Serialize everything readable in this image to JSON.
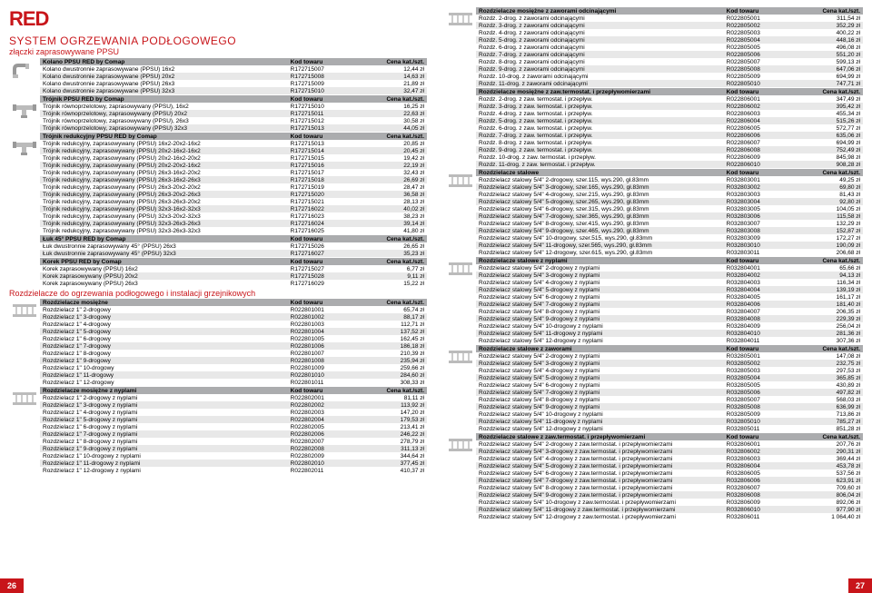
{
  "logo": "RED",
  "mainTitle": "SYSTEM OGRZEWANIA PODŁOGOWEGO",
  "subTitle": "złączki zaprasowywane PPSU",
  "colHeaders": {
    "code": "Kod towaru",
    "price": "Cena kat./szt."
  },
  "secTitle2": "Rozdzielacze do ogrzewania podłogowego i instalacji grzejnikowych",
  "pageLeft": "26",
  "pageRight": "27",
  "leftSections": [
    {
      "header": "Kolano PPSU RED by Comap",
      "thumb": "elbow",
      "rows": [
        [
          "Kolano dwustronnie zaprasowywane (PPSU) 16x2",
          "R172715007",
          "12,44 zł"
        ],
        [
          "Kolano dwustronnie zaprasowywane (PPSU) 20x2",
          "R172715008",
          "14,63 zł"
        ],
        [
          "Kolano dwustronnie zaprasowywane (PPSU) 26x3",
          "R172715009",
          "21,89 zł"
        ],
        [
          "Kolano dwustronnie zaprasowywane (PPSU) 32x3",
          "R172715010",
          "32,47 zł"
        ]
      ]
    },
    {
      "header": "Trójnik PPSU RED by Comap",
      "thumb": "tee",
      "rows": [
        [
          "Trójnik równoprzelotowy, zaprasowywany (PPSU), 16x2",
          "R172715010",
          "16,25 zł"
        ],
        [
          "Trójnik równoprzelotowy, zaprasowywany (PPSU) 20x2",
          "R172715011",
          "22,63 zł"
        ],
        [
          "Trójnik równoprzelotowy, zaprasowywany (PPSU), 26x3",
          "R172715012",
          "30,58 zł"
        ],
        [
          "Trójnik równoprzelotowy, zaprasowywany (PPSU) 32x3",
          "R172715013",
          "44,05 zł"
        ]
      ]
    },
    {
      "header": "Trójnik redukcyjny PPSU RED by Comap",
      "thumb": "tee",
      "rows": [
        [
          "Trójnik redukcyjny, zaprasowywany (PPSU) 16x2-20x2-16x2",
          "R172715013",
          "20,85 zł"
        ],
        [
          "Trójnik redukcyjny, zaprasowywany (PPSU) 20x2-16x2-16x2",
          "R172715014",
          "20,45 zł"
        ],
        [
          "Trójnik redukcyjny, zaprasowywany (PPSU) 20x2-16x2-20x2",
          "R172715015",
          "19,42 zł"
        ],
        [
          "Trójnik redukcyjny, zaprasowywany (PPSU) 20x2-20x2-16x2",
          "R172715016",
          "22,19 zł"
        ],
        [
          "Trójnik redukcyjny, zaprasowywany (PPSU) 26x3-16x2-20x2",
          "R172715017",
          "32,43 zł"
        ],
        [
          "Trójnik redukcyjny, zaprasowywany (PPSU) 26x3-16x2-26x3",
          "R172715018",
          "26,69 zł"
        ],
        [
          "Trójnik redukcyjny, zaprasowywany (PPSU) 26x3-20x2-20x2",
          "R172715019",
          "28,47 zł"
        ],
        [
          "Trójnik redukcyjny, zaprasowywany (PPSU) 26x3-20x2-26x3",
          "R172715020",
          "36,58 zł"
        ],
        [
          "Trójnik redukcyjny, zaprasowywany (PPSU) 26x3-26x3-20x2",
          "R172715021",
          "28,13 zł"
        ],
        [
          "Trójnik redukcyjny, zaprasowywany (PPSU) 32x3-16x2-32x3",
          "R172716022",
          "40,02 zł"
        ],
        [
          "Trójnik redukcyjny, zaprasowywany (PPSU) 32x3-20x2-32x3",
          "R172716023",
          "38,23 zł"
        ],
        [
          "Trójnik redukcyjny, zaprasowywany (PPSU) 32x3-26x3-26x3",
          "R172716024",
          "39,14 zł"
        ],
        [
          "Trójnik redukcyjny, zaprasowywany (PPSU) 32x3-26x3-32x3",
          "R172716025",
          "41,80 zł"
        ]
      ]
    },
    {
      "header": "Łuk 45° PPSU RED by Comap",
      "thumb": "",
      "rows": [
        [
          "Łuk dwustronnie zaprasowywany 45° (PPSU) 26x3",
          "R172715026",
          "26,65 zł"
        ],
        [
          "Łuk dwustronnie zaprasowywany 45° (PPSU) 32x3",
          "R172716027",
          "35,23 zł"
        ]
      ]
    },
    {
      "header": "Korek PPSU RED by Comap",
      "thumb": "",
      "rows": [
        [
          "Korek zaprasowywany (PPSU) 16x2",
          "R172715027",
          "6,77 zł"
        ],
        [
          "Korek zaprasowywany (PPSU) 20x2",
          "R172715028",
          "9,11 zł"
        ],
        [
          "Korek zaprasowywany (PPSU) 26x3",
          "R172716029",
          "15,22 zł"
        ]
      ]
    },
    {
      "header": "Rozdzielacze mosiężne",
      "thumb": "manifold",
      "break": true,
      "rows": [
        [
          "Rozdzielacz 1\" 2-drogowy",
          "R022801001",
          "65,74 zł"
        ],
        [
          "Rozdzielacz 1\" 3-drogowy",
          "R022801002",
          "88,17 zł"
        ],
        [
          "Rozdzielacz 1\" 4-drogowy",
          "R022801003",
          "112,71 zł"
        ],
        [
          "Rozdzielacz 1\" 5-drogowy",
          "R022801004",
          "137,52 zł"
        ],
        [
          "Rozdzielacz 1\" 6-drogowy",
          "R022801005",
          "162,45 zł"
        ],
        [
          "Rozdzielacz 1\" 7-drogowy",
          "R022801006",
          "186,18 zł"
        ],
        [
          "Rozdzielacz 1\" 8-drogowy",
          "R022801007",
          "210,39 zł"
        ],
        [
          "Rozdzielacz 1\" 9-drogowy",
          "R022801008",
          "235,94 zł"
        ],
        [
          "Rozdzielacz 1\" 10-drogowy",
          "R022801009",
          "259,66 zł"
        ],
        [
          "Rozdzielacz 1\" 11-drogowy",
          "R022801010",
          "284,60 zł"
        ],
        [
          "Rozdzielacz 1\" 12-drogowy",
          "R022801011",
          "308,33 zł"
        ]
      ]
    },
    {
      "header": "Rozdzielacze mosiężne z nyplami",
      "thumb": "manifold",
      "rows": [
        [
          "Rozdzielacz 1\" 2-drogowy z nyplami",
          "R022802001",
          "81,11 zł"
        ],
        [
          "Rozdzielacz 1\" 3-drogowy z nyplami",
          "R022802002",
          "113,92 zł"
        ],
        [
          "Rozdzielacz 1\" 4-drogowy z nyplami",
          "R022802003",
          "147,20 zł"
        ],
        [
          "Rozdzielacz 1\" 5-drogowy z nyplami",
          "R022802004",
          "179,53 zł"
        ],
        [
          "Rozdzielacz 1\" 6-drogowy z nyplami",
          "R022802005",
          "213,41 zł"
        ],
        [
          "Rozdzielacz 1\" 7-drogowy z nyplami",
          "R022802006",
          "246,22 zł"
        ],
        [
          "Rozdzielacz 1\" 8-drogowy z nyplami",
          "R022802007",
          "278,79 zł"
        ],
        [
          "Rozdzielacz 1\" 9-drogowy z nyplami",
          "R022802008",
          "311,13 zł"
        ],
        [
          "Rozdzielacz 1\" 10-drogowy z nyplami",
          "R022802009",
          "344,64 zł"
        ],
        [
          "Rozdzielacz 1\" 11-drogowy z nyplami",
          "R022802010",
          "377,45 zł"
        ],
        [
          "Rozdzielacz 1\" 12-drogowy z nyplami",
          "R022802011",
          "410,37 zł"
        ]
      ]
    }
  ],
  "rightSections": [
    {
      "header": "Rozdzielacze mosiężne z zaworami odcinającymi",
      "thumb": "manifold",
      "rows": [
        [
          "Rozdz. 2-drog. z zaworami odcinającymi",
          "R022805001",
          "311,54 zł"
        ],
        [
          "Rozdz. 3-drog. z zaworami odcinającymi",
          "R022805002",
          "352,29 zł"
        ],
        [
          "Rozdz. 4-drog. z zaworami odcinającymi",
          "R022805003",
          "400,22 zł"
        ],
        [
          "Rozdz. 5-drog. z zaworami odcinającymi",
          "R022805004",
          "448,16 zł"
        ],
        [
          "Rozdz. 6-drog. z zaworami odcinającymi",
          "R022805005",
          "496,08 zł"
        ],
        [
          "Rozdz. 7-drog. z zaworami odcinającymi",
          "R022805006",
          "551,20 zł"
        ],
        [
          "Rozdz. 8-drog. z zaworami odcinającymi",
          "R022805007",
          "599,13 zł"
        ],
        [
          "Rozdz. 9-drog. z zaworami odcinającymi",
          "R022805008",
          "647,06 zł"
        ],
        [
          "Rozdz. 10-drog. z zaworami odcinającymi",
          "R022805009",
          "694,99 zł"
        ],
        [
          "Rozdz. 11-drog. z zaworami odcinającymi",
          "R022805010",
          "747,71 zł"
        ]
      ]
    },
    {
      "header": "Rozdzielacze mosiężne z zaw.termostat. i przepływomierzami",
      "thumb": "",
      "rows": [
        [
          "Rozdz. 2-drog. z zaw. termostat. i przepływ.",
          "R022806001",
          "347,49 zł"
        ],
        [
          "Rozdz. 3-drog. z zaw. termostat. i przepływ.",
          "R022806002",
          "395,42 zł"
        ],
        [
          "Rozdz. 4-drog. z zaw. termostat. i przepływ.",
          "R022806003",
          "455,34 zł"
        ],
        [
          "Rozdz. 5-drog. z zaw. termostat. i przepływ.",
          "R022806004",
          "515,26 zł"
        ],
        [
          "Rozdz. 6-drog. z zaw. termostat. i przepływ.",
          "R022806005",
          "572,77 zł"
        ],
        [
          "Rozdz. 7-drog. z zaw. termostat. i przepływ.",
          "R022806006",
          "635,06 zł"
        ],
        [
          "Rozdz. 8-drog. z zaw. termostat. i przepływ.",
          "R022806007",
          "694,99 zł"
        ],
        [
          "Rozdz. 9-drog. z zaw. termostat. i przepływ.",
          "R022806008",
          "752,49 zł"
        ],
        [
          "Rozdz. 10-drog. z zaw. termostat. i przepływ.",
          "R022806009",
          "845,98 zł"
        ],
        [
          "Rozdz. 11-drog. z zaw. termostat. i przepływ.",
          "R022806010",
          "908,28 zł"
        ]
      ]
    },
    {
      "header": "Rozdzielacze stalowe",
      "thumb": "manifold",
      "rows": [
        [
          "Rozdzielacz stalowy 5/4\" 2-drogowy, szer.115, wys.290, gł.83mm",
          "R032803001",
          "49,25 zł"
        ],
        [
          "Rozdzielacz stalowy 5/4\" 3-drogowy, szer.165, wys.290, gł.83mm",
          "R032803002",
          "69,80 zł"
        ],
        [
          "Rozdzielacz stalowy 5/4\" 4-drogowy, szer.215, wys.290, gł.83mm",
          "R032803003",
          "81,43 zł"
        ],
        [
          "Rozdzielacz stalowy 5/4\" 5-drogowy, szer.265, wys.290, gł.83mm",
          "R032803004",
          "92,80 zł"
        ],
        [
          "Rozdzielacz stalowy 5/4\" 6-drogowy, szer.315, wys.290, gł.83mm",
          "R032803005",
          "104,05 zł"
        ],
        [
          "Rozdzielacz stalowy 5/4\" 7-drogowy, szer.365, wys.290, gł.83mm",
          "R032803006",
          "115,58 zł"
        ],
        [
          "Rozdzielacz stalowy 5/4\" 8-drogowy, szer.415, wys.290, gł.83mm",
          "R032803007",
          "132,29 zł"
        ],
        [
          "Rozdzielacz stalowy 5/4\" 9-drogowy, szer.465, wys.290, gł.83mm",
          "R032803008",
          "152,87 zł"
        ],
        [
          "Rozdzielacz stalowy 5/4\" 10-drogowy, szer.515, wys.290, gł.83mm",
          "R032803009",
          "172,27 zł"
        ],
        [
          "Rozdzielacz stalowy 5/4\" 11-drogowy, szer.565, wys.290, gł.83mm",
          "R032803010",
          "190,09 zł"
        ],
        [
          "Rozdzielacz stalowy 5/4\" 12-drogowy, szer.615, wys.290, gł.83mm",
          "R032803011",
          "206,68 zł"
        ]
      ]
    },
    {
      "header": "Rozdzielacze stalowe z nyplami",
      "thumb": "manifold",
      "rows": [
        [
          "Rozdzielacz stalowy 5/4\" 2-drogowy z nyplami",
          "R032804001",
          "65,66 zł"
        ],
        [
          "Rozdzielacz stalowy 5/4\" 3-drogowy z nyplami",
          "R032804002",
          "94,13 zł"
        ],
        [
          "Rozdzielacz stalowy 5/4\" 4-drogowy z nyplami",
          "R032804003",
          "116,34 zł"
        ],
        [
          "Rozdzielacz stalowy 5/4\" 5-drogowy z nyplami",
          "R032804004",
          "139,19 zł"
        ],
        [
          "Rozdzielacz stalowy 5/4\" 6-drogowy z nyplami",
          "R032804005",
          "161,17 zł"
        ],
        [
          "Rozdzielacz stalowy 5/4\" 7-drogowy z nyplami",
          "R032804006",
          "181,40 zł"
        ],
        [
          "Rozdzielacz stalowy 5/4\" 8-drogowy z nyplami",
          "R032804007",
          "206,35 zł"
        ],
        [
          "Rozdzielacz stalowy 5/4\" 9-drogowy z nyplami",
          "R032804008",
          "229,39 zł"
        ],
        [
          "Rozdzielacz stalowy 5/4\" 10-drogowy z nyplami",
          "R032804009",
          "256,04 zł"
        ],
        [
          "Rozdzielacz stalowy 5/4\" 11-drogowy z nyplami",
          "R032804010",
          "281,36 zł"
        ],
        [
          "Rozdzielacz stalowy 5/4\" 12-drogowy z nyplami",
          "R032804011",
          "307,36 zł"
        ]
      ]
    },
    {
      "header": "Rozdzielacze stalowe z zaworami",
      "thumb": "manifold",
      "rows": [
        [
          "Rozdzielacz stalowy 5/4\" 2-drogowy z nyplami",
          "R032805001",
          "147,08 zł"
        ],
        [
          "Rozdzielacz stalowy 5/4\" 3-drogowy z nyplami",
          "R032805002",
          "232,75 zł"
        ],
        [
          "Rozdzielacz stalowy 5/4\" 4-drogowy z nyplami",
          "R032805003",
          "297,53 zł"
        ],
        [
          "Rozdzielacz stalowy 5/4\" 5-drogowy z nyplami",
          "R032805004",
          "365,85 zł"
        ],
        [
          "Rozdzielacz stalowy 5/4\" 6-drogowy z nyplami",
          "R032805005",
          "430,89 zł"
        ],
        [
          "Rozdzielacz stalowy 5/4\" 7-drogowy z nyplami",
          "R032805006",
          "497,82 zł"
        ],
        [
          "Rozdzielacz stalowy 5/4\" 8-drogowy z nyplami",
          "R032805007",
          "568,03 zł"
        ],
        [
          "Rozdzielacz stalowy 5/4\" 9-drogowy z nyplami",
          "R032805008",
          "636,99 zł"
        ],
        [
          "Rozdzielacz stalowy 5/4\" 10-drogowy z nyplami",
          "R032805009",
          "713,86 zł"
        ],
        [
          "Rozdzielacz stalowy 5/4\" 11-drogowy z nyplami",
          "R032805010",
          "785,27 zł"
        ],
        [
          "Rozdzielacz stalowy 5/4\" 12-drogowy z nyplami",
          "R032805011",
          "851,28 zł"
        ]
      ]
    },
    {
      "header": "Rozdzielacze stalowe z zaw.termostat. i przepływomierzami",
      "thumb": "manifold",
      "rows": [
        [
          "Rozdzielacz stalowy 5/4\" 2-drogowy z zaw.termostat. i przepływomierzami",
          "R032806001",
          "207,76 zł"
        ],
        [
          "Rozdzielacz stalowy 5/4\" 3-drogowy z zaw.termostat. i przepływomierzami",
          "R032806002",
          "290,31 zł"
        ],
        [
          "Rozdzielacz stalowy 5/4\" 4-drogowy z zaw.termostat. i przepływomierzami",
          "R032806003",
          "369,44 zł"
        ],
        [
          "Rozdzielacz stalowy 5/4\" 5-drogowy z zaw.termostat. i przepływomierzami",
          "R032806004",
          "453,78 zł"
        ],
        [
          "Rozdzielacz stalowy 5/4\" 6-drogowy z zaw.termostat. i przepływomierzami",
          "R032806005",
          "537,56 zł"
        ],
        [
          "Rozdzielacz stalowy 5/4\" 7-drogowy z zaw.termostat. i przepływomierzami",
          "R032806006",
          "623,91 zł"
        ],
        [
          "Rozdzielacz stalowy 5/4\" 8-drogowy z zaw.termostat. i przepływomierzami",
          "R032806007",
          "709,60 zł"
        ],
        [
          "Rozdzielacz stalowy 5/4\" 9-drogowy z zaw.termostat. i przepływomierzami",
          "R032806008",
          "806,04 zł"
        ],
        [
          "Rozdzielacz stalowy 5/4\" 10-drogowy z zaw.termostat. i przepływomierzami",
          "R032806009",
          "892,06 zł"
        ],
        [
          "Rozdzielacz stalowy 5/4\" 11-drogowy z zaw.termostat. i przepływomierzami",
          "R032806010",
          "977,90 zł"
        ],
        [
          "Rozdzielacz stalowy 5/4\" 12-drogowy z zaw.termostat. i przepływomierzami",
          "R032806011",
          "1 064,40 zł"
        ]
      ]
    }
  ]
}
